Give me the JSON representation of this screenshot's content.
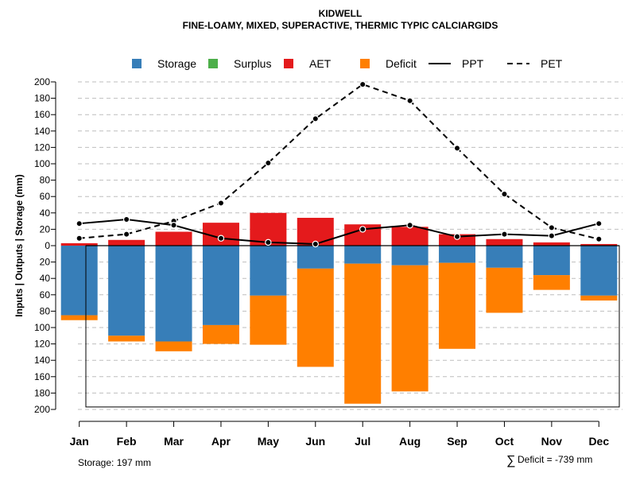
{
  "chart_data": {
    "type": "bar",
    "title": "KIDWELL",
    "subtitle": "FINE-LOAMY, MIXED, SUPERACTIVE, THERMIC TYPIC CALCIARGIDS",
    "ylabel": "Inputs | Outputs | Storage     (mm)",
    "ylim": [
      -200,
      200
    ],
    "yticks": [
      200,
      180,
      160,
      140,
      120,
      100,
      80,
      60,
      40,
      20,
      0,
      20,
      40,
      60,
      80,
      100,
      120,
      140,
      160,
      180,
      200
    ],
    "ytick_values": [
      200,
      180,
      160,
      140,
      120,
      100,
      80,
      60,
      40,
      20,
      0,
      -20,
      -40,
      -60,
      -80,
      -100,
      -120,
      -140,
      -160,
      -180,
      -200
    ],
    "categories": [
      "Jan",
      "Feb",
      "Mar",
      "Apr",
      "May",
      "Jun",
      "Jul",
      "Aug",
      "Sep",
      "Oct",
      "Nov",
      "Dec"
    ],
    "legend": [
      {
        "label": "Storage",
        "kind": "box",
        "color": "#377EB8"
      },
      {
        "label": "Surplus",
        "kind": "box",
        "color": "#4DAF4A"
      },
      {
        "label": "AET",
        "kind": "box",
        "color": "#E41A1C"
      },
      {
        "label": "Deficit",
        "kind": "box",
        "color": "#FF7F00"
      },
      {
        "label": "PPT",
        "kind": "solid",
        "color": "#000000"
      },
      {
        "label": "PET",
        "kind": "dashed",
        "color": "#000000"
      }
    ],
    "series": [
      {
        "name": "AET",
        "values": [
          3,
          7,
          17,
          28,
          40,
          34,
          26,
          23,
          14,
          8,
          4,
          2
        ]
      },
      {
        "name": "Surplus",
        "values": [
          0,
          0,
          0,
          0,
          0,
          0,
          0,
          0,
          0,
          0,
          0,
          0
        ]
      },
      {
        "name": "Storage",
        "values": [
          85,
          110,
          117,
          97,
          61,
          28,
          22,
          24,
          21,
          27,
          36,
          61
        ]
      },
      {
        "name": "Deficit",
        "values": [
          6,
          7,
          12,
          23,
          60,
          120,
          171,
          154,
          105,
          55,
          18,
          6
        ]
      },
      {
        "name": "PPT",
        "values": [
          27,
          32,
          25,
          9,
          4,
          2,
          20,
          25,
          11,
          14,
          12,
          27
        ]
      },
      {
        "name": "PET",
        "values": [
          9,
          14,
          30,
          52,
          101,
          155,
          197,
          177,
          119,
          63,
          22,
          8
        ]
      }
    ],
    "storage_capacity": 197,
    "colors": {
      "storage": "#377EB8",
      "surplus": "#4DAF4A",
      "aet": "#E41A1C",
      "deficit": "#FF7F00",
      "grid": "#BEBEBE"
    }
  },
  "footer": {
    "storage_label": "Storage: 197 mm",
    "deficit_symbol": "∑",
    "deficit_label": "Deficit = -739 mm"
  }
}
